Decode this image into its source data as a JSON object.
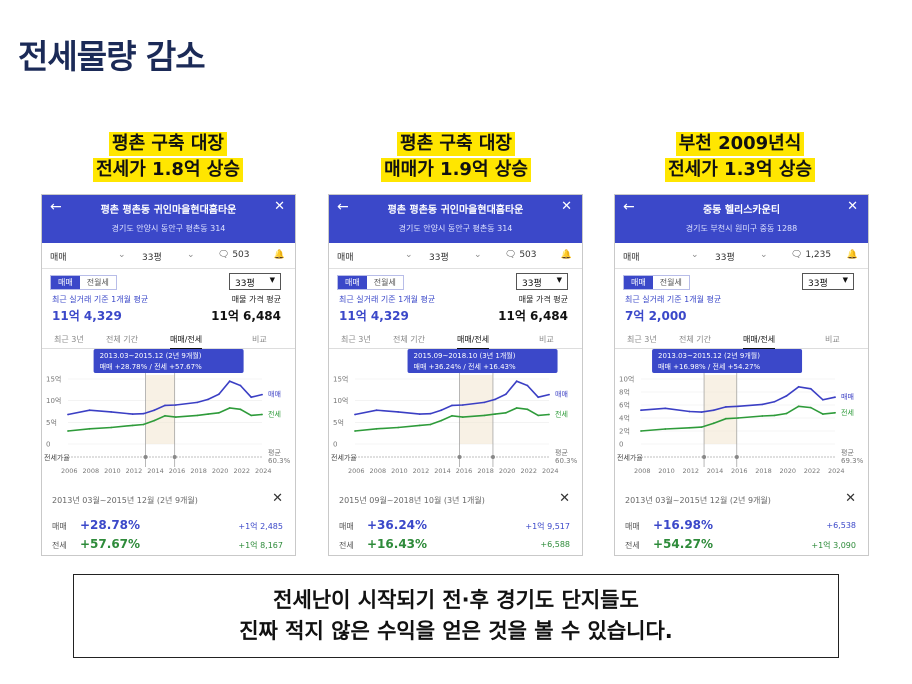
{
  "slide_title": "전세물량 감소",
  "caption": {
    "line1": "전세난이 시작되기 전·후 경기도 단지들도",
    "line2": "진짜 적지 않은 수익을 얻은 것을 볼 수 있습니다."
  },
  "panels": [
    {
      "headline1": "평촌 구축 대장",
      "headline2": "전세가 1.8억 상승",
      "complex_title": "평촌 평촌동 귀인마을현대홈타운",
      "address": "경기도 안양시 동안구 평촌동 314",
      "filter_type": "매매",
      "filter_size": "33평",
      "comments": "503",
      "toggle_on": "매매",
      "toggle_off": "전월세",
      "size_select": "33평",
      "avg_note": "최근 실거래 기준 1개월 평균",
      "avg_value": "11억 4,329",
      "sell_note": "매물 가격 평균",
      "sell_value": "11억 6,484",
      "tabs": [
        "최근 3년",
        "전체 기간",
        "매매/전세",
        "비교"
      ],
      "period_box": "2013.03~2015.12 (2년 9개월)",
      "period_stats": "매매 +28.78% / 전세 +57.67%",
      "y_ticks": [
        "15억",
        "10억",
        "5억",
        "0"
      ],
      "x_ticks": [
        "2006",
        "2008",
        "2010",
        "2012",
        "2014",
        "2016",
        "2018",
        "2020",
        "2022",
        "2024"
      ],
      "legend_sale": "매매",
      "legend_rent": "전세",
      "vol_label": "전세가율",
      "avg_label": "평균",
      "avg_rate": "60.3%",
      "range_text": "2013년 03월~2015년 12월 (2년 9개월)",
      "row1_label": "매매",
      "row1_pct": "+28.78%",
      "row1_amt": "+1억 2,485",
      "row2_label": "전세",
      "row2_pct": "+57.67%",
      "row2_amt": "+1억 8,167"
    },
    {
      "headline1": "평촌 구축 대장",
      "headline2": "매매가 1.9억 상승",
      "complex_title": "평촌 평촌동 귀인마을현대홈타운",
      "address": "경기도 안양시 동안구 평촌동 314",
      "filter_type": "매매",
      "filter_size": "33평",
      "comments": "503",
      "toggle_on": "매매",
      "toggle_off": "전월세",
      "size_select": "33평",
      "avg_note": "최근 실거래 기준 1개월 평균",
      "avg_value": "11억 4,329",
      "sell_note": "매물 가격 평균",
      "sell_value": "11억 6,484",
      "tabs": [
        "최근 3년",
        "전체 기간",
        "매매/전세",
        "비교"
      ],
      "period_box": "2015.09~2018.10 (3년 1개월)",
      "period_stats": "매매 +36.24% / 전세 +16.43%",
      "y_ticks": [
        "15억",
        "10억",
        "5억",
        "0"
      ],
      "x_ticks": [
        "2006",
        "2008",
        "2010",
        "2012",
        "2014",
        "2016",
        "2018",
        "2020",
        "2022",
        "2024"
      ],
      "legend_sale": "매매",
      "legend_rent": "전세",
      "vol_label": "전세가율",
      "avg_label": "평균",
      "avg_rate": "60.3%",
      "range_text": "2015년 09월~2018년 10월 (3년 1개월)",
      "row1_label": "매매",
      "row1_pct": "+36.24%",
      "row1_amt": "+1억 9,517",
      "row2_label": "전세",
      "row2_pct": "+16.43%",
      "row2_amt": "+6,588"
    },
    {
      "headline1": "부천 2009년식",
      "headline2": "전세가 1.3억 상승",
      "complex_title": "중동 헬리스카운티",
      "address": "경기도 부천시 원미구 중동 1288",
      "filter_type": "매매",
      "filter_size": "33평",
      "comments": "1,235",
      "toggle_on": "매매",
      "toggle_off": "전월세",
      "size_select": "33평",
      "avg_note": "최근 실거래 기준 1개월 평균",
      "avg_value": "7억 2,000",
      "sell_note": "",
      "sell_value": "",
      "tabs": [
        "최근 3년",
        "전체 기간",
        "매매/전세",
        "비교"
      ],
      "period_box": "2013.03~2015.12 (2년 9개월)",
      "period_stats": "매매 +16.98% / 전세 +54.27%",
      "y_ticks": [
        "10억",
        "8억",
        "6억",
        "4억",
        "2억",
        "0"
      ],
      "x_ticks": [
        "2008",
        "2010",
        "2012",
        "2014",
        "2016",
        "2018",
        "2020",
        "2022",
        "2024"
      ],
      "legend_sale": "매매",
      "legend_rent": "전세",
      "vol_label": "전세가율",
      "avg_label": "평균",
      "avg_rate": "69.3%",
      "range_text": "2013년 03월~2015년 12월 (2년 9개월)",
      "row1_label": "매매",
      "row1_pct": "+16.98%",
      "row1_amt": "+6,538",
      "row2_label": "전세",
      "row2_pct": "+54.27%",
      "row2_amt": "+1억 3,090"
    }
  ],
  "chart_data": [
    {
      "type": "line",
      "x": [
        2006,
        2008,
        2010,
        2012,
        2013,
        2014,
        2015,
        2016,
        2018,
        2019,
        2020,
        2021,
        2022,
        2023,
        2024
      ],
      "series": [
        {
          "name": "매매",
          "color": "#3b3fc4",
          "values": [
            6.8,
            7.8,
            7.4,
            6.9,
            7.0,
            7.8,
            8.9,
            9.0,
            9.6,
            10.3,
            11.5,
            14.5,
            13.5,
            10.8,
            11.4
          ]
        },
        {
          "name": "전세",
          "color": "#2e9b3a",
          "values": [
            3.0,
            3.5,
            3.8,
            4.3,
            4.5,
            5.4,
            6.5,
            6.2,
            6.6,
            6.9,
            7.2,
            8.3,
            8.0,
            6.6,
            6.8
          ]
        }
      ],
      "ylim": [
        0,
        15
      ],
      "highlight": [
        2013.2,
        2015.9
      ]
    },
    {
      "type": "line",
      "x": [
        2006,
        2008,
        2010,
        2012,
        2013,
        2014,
        2015,
        2016,
        2018,
        2019,
        2020,
        2021,
        2022,
        2023,
        2024
      ],
      "series": [
        {
          "name": "매매",
          "color": "#3b3fc4",
          "values": [
            6.8,
            7.8,
            7.4,
            6.9,
            7.0,
            7.8,
            8.9,
            9.0,
            9.6,
            10.3,
            11.5,
            14.5,
            13.5,
            10.8,
            11.4
          ]
        },
        {
          "name": "전세",
          "color": "#2e9b3a",
          "values": [
            3.0,
            3.5,
            3.8,
            4.3,
            4.5,
            5.4,
            6.5,
            6.2,
            6.6,
            6.9,
            7.2,
            8.3,
            8.0,
            6.6,
            6.8
          ]
        }
      ],
      "ylim": [
        0,
        15
      ],
      "highlight": [
        2015.7,
        2018.8
      ]
    },
    {
      "type": "line",
      "x": [
        2008,
        2010,
        2012,
        2013,
        2014,
        2015,
        2016,
        2018,
        2019,
        2020,
        2021,
        2022,
        2023,
        2024
      ],
      "series": [
        {
          "name": "매매",
          "color": "#3b3fc4",
          "values": [
            5.2,
            5.5,
            5.0,
            4.9,
            5.2,
            5.7,
            5.8,
            6.1,
            6.5,
            7.4,
            8.8,
            8.5,
            6.8,
            7.2
          ]
        },
        {
          "name": "전세",
          "color": "#2e9b3a",
          "values": [
            2.0,
            2.3,
            2.5,
            2.6,
            3.2,
            3.9,
            4.0,
            4.3,
            4.4,
            4.7,
            5.8,
            5.6,
            4.6,
            4.8
          ]
        }
      ],
      "ylim": [
        0,
        10
      ],
      "highlight": [
        2013.2,
        2015.9
      ]
    }
  ]
}
